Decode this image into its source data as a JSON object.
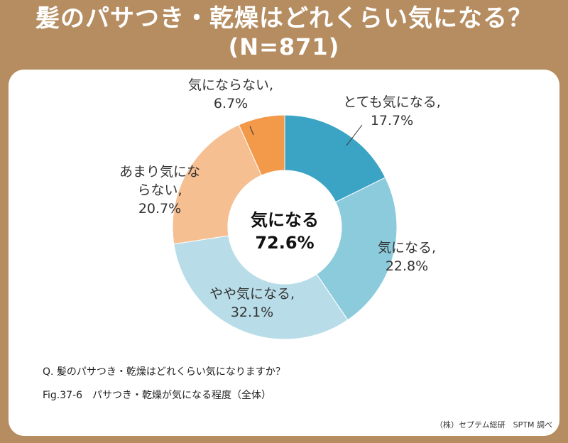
{
  "title": {
    "main": "髪のパサつき・乾燥はどれくらい気になる？",
    "n": "(N=871)"
  },
  "chart_data": {
    "type": "pie",
    "style": "donut",
    "categories": [
      "とても気になる",
      "気になる",
      "やや気になる",
      "あまり気にならない",
      "気にならない"
    ],
    "values": [
      17.7,
      22.8,
      32.1,
      20.7,
      6.7
    ],
    "unit": "%",
    "colors": [
      "#3ba4c4",
      "#8ccbdc",
      "#b9dde8",
      "#f6bf92",
      "#f2994a"
    ],
    "slice_labels": [
      [
        "とても気になる,",
        "17.7%"
      ],
      [
        "気になる,",
        "22.8%"
      ],
      [
        "やや気になる,",
        "32.1%"
      ],
      [
        "あまり気にな",
        "らない,",
        "20.7%"
      ],
      [
        "気にならない,",
        "6.7%"
      ]
    ],
    "center_label": [
      "気になる",
      "72.6%"
    ]
  },
  "footer": {
    "question": "Q. 髪のパサつき・乾燥はどれくらい気になりますか？",
    "figure": "Fig.37-6　パサつき・乾燥が気になる程度（全体）",
    "source": "（株）セプテム総研　SPTM 調べ"
  }
}
